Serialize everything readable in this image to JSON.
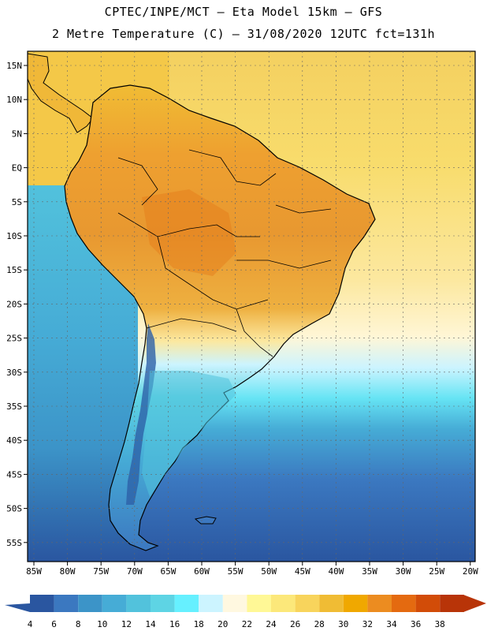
{
  "header": {
    "line1": "CPTEC/INPE/MCT –  Eta Model 15km – GFS",
    "line2": "2 Metre Temperature (C) – 31/08/2020 12UTC fct=131h"
  },
  "map": {
    "lat_labels": [
      "15N",
      "10N",
      "5N",
      "EQ",
      "5S",
      "10S",
      "15S",
      "20S",
      "25S",
      "30S",
      "35S",
      "40S",
      "45S",
      "50S",
      "55S"
    ],
    "lon_labels": [
      "85W",
      "80W",
      "75W",
      "70W",
      "65W",
      "60W",
      "55W",
      "50W",
      "45W",
      "40W",
      "35W",
      "30W",
      "25W",
      "20W"
    ],
    "colors": {
      "land_warm": "#e8a830",
      "ocean_north": "#f4d060",
      "ocean_south": "#2d60a8",
      "coastline": "#000000"
    }
  },
  "colorbar": {
    "ticks": [
      "4",
      "6",
      "8",
      "10",
      "12",
      "14",
      "16",
      "18",
      "20",
      "22",
      "24",
      "26",
      "28",
      "30",
      "32",
      "34",
      "36",
      "38"
    ],
    "colors": [
      "#2a56a0",
      "#3b78c0",
      "#3c94c8",
      "#46acd6",
      "#52c2dc",
      "#5ed4e4",
      "#66f0ff",
      "#ccf4ff",
      "#fff8e0",
      "#fff896",
      "#fce87a",
      "#f8d45c",
      "#f0bc34",
      "#f0a800",
      "#ec8c20",
      "#e46a10",
      "#d24c08",
      "#b83408"
    ],
    "left_arrow_color": "#2a56a0",
    "right_arrow_color": "#b83408"
  }
}
